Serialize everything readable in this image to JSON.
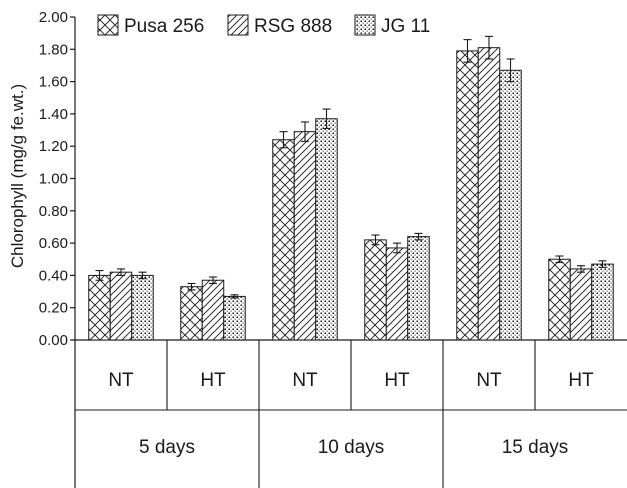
{
  "chart_data": {
    "type": "bar",
    "title": "",
    "xlabel": "",
    "ylabel": "Chlorophyll (mg/g fe.wt.)",
    "ylim": [
      0,
      2.0
    ],
    "yticks": [
      "0.00",
      "0.20",
      "0.40",
      "0.60",
      "0.80",
      "1.00",
      "1.20",
      "1.40",
      "1.60",
      "1.80",
      "2.00"
    ],
    "legend_position": "top-left",
    "grid": false,
    "categories": [
      "NT",
      "HT",
      "NT",
      "HT",
      "NT",
      "HT"
    ],
    "groups": [
      "5 days",
      "10 days",
      "15 days"
    ],
    "series": [
      {
        "name": "Pusa 256",
        "pattern": "crosshatch",
        "values": [
          0.4,
          0.33,
          1.24,
          0.62,
          1.79,
          0.5
        ],
        "errors": [
          0.03,
          0.02,
          0.05,
          0.03,
          0.07,
          0.02
        ]
      },
      {
        "name": "RSG 888",
        "pattern": "diagonal",
        "values": [
          0.42,
          0.37,
          1.29,
          0.57,
          1.81,
          0.44
        ],
        "errors": [
          0.02,
          0.02,
          0.06,
          0.03,
          0.07,
          0.02
        ]
      },
      {
        "name": "JG 11",
        "pattern": "dotted",
        "values": [
          0.4,
          0.27,
          1.37,
          0.64,
          1.67,
          0.47
        ],
        "errors": [
          0.02,
          0.01,
          0.06,
          0.02,
          0.07,
          0.02
        ]
      }
    ]
  }
}
